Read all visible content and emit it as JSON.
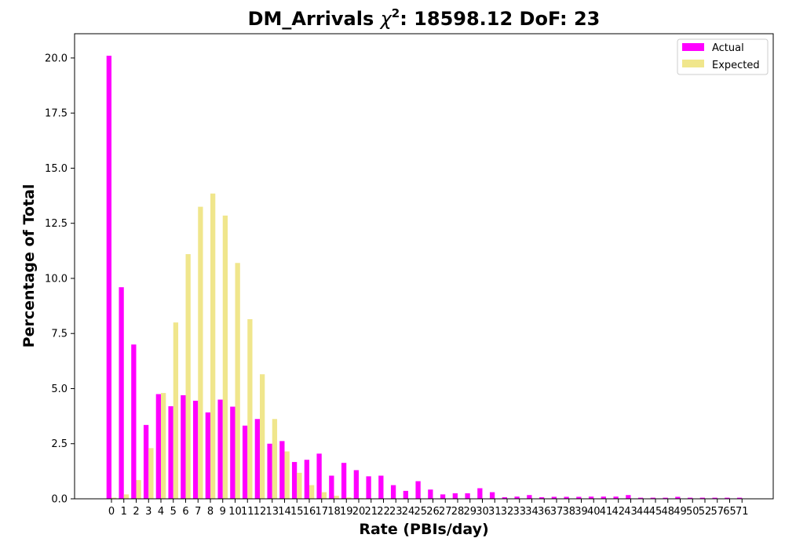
{
  "chart_data": {
    "type": "bar",
    "title": "DM_Arrivals χ²: 18598.12 DoF: 23",
    "title_parts": {
      "prefix": "DM_Arrivals ",
      "chi": "χ",
      "sup": "2",
      "suffix": ": 18598.12 DoF: 23"
    },
    "xlabel": "Rate (PBIs/day)",
    "ylabel": "Percentage of Total",
    "ylim": [
      0,
      21.1
    ],
    "yticks": [
      "0.0",
      "2.5",
      "5.0",
      "7.5",
      "10.0",
      "12.5",
      "15.0",
      "17.5",
      "20.0"
    ],
    "categories": [
      "0",
      "1",
      "2",
      "3",
      "4",
      "5",
      "6",
      "7",
      "8",
      "9",
      "10",
      "11",
      "12",
      "13",
      "14",
      "15",
      "16",
      "17",
      "18",
      "19",
      "20",
      "21",
      "22",
      "23",
      "24",
      "25",
      "26",
      "27",
      "28",
      "29",
      "30",
      "31",
      "32",
      "33",
      "34",
      "36",
      "37",
      "38",
      "39",
      "40",
      "41",
      "42",
      "43",
      "44",
      "45",
      "48",
      "49",
      "50",
      "52",
      "57",
      "65",
      "71"
    ],
    "series": [
      {
        "name": "Actual",
        "color": "#ff00ff",
        "values": [
          20.1,
          9.6,
          7.0,
          3.35,
          4.75,
          4.2,
          4.7,
          4.45,
          3.92,
          4.5,
          4.18,
          3.32,
          3.62,
          2.5,
          2.62,
          1.67,
          1.77,
          2.05,
          1.05,
          1.63,
          1.3,
          1.02,
          1.05,
          0.62,
          0.36,
          0.8,
          0.42,
          0.2,
          0.25,
          0.25,
          0.48,
          0.3,
          0.07,
          0.1,
          0.17,
          0.07,
          0.09,
          0.09,
          0.09,
          0.1,
          0.1,
          0.1,
          0.17,
          0.05,
          0.05,
          0.05,
          0.09,
          0.05,
          0.05,
          0.05,
          0.05,
          0.05
        ]
      },
      {
        "name": "Expected",
        "color": "#f0e68c",
        "values": [
          0.05,
          0.2,
          0.85,
          2.3,
          4.8,
          8.0,
          11.1,
          13.25,
          13.85,
          12.85,
          10.7,
          8.15,
          5.65,
          3.62,
          2.15,
          1.18,
          0.62,
          0.3,
          0.14,
          0.06,
          0.03,
          0.01,
          0,
          0,
          0,
          0,
          0,
          0,
          0,
          0,
          0,
          0,
          0,
          0,
          0,
          0,
          0,
          0,
          0,
          0,
          0,
          0,
          0,
          0,
          0,
          0,
          0,
          0,
          0,
          0,
          0,
          0
        ]
      }
    ],
    "legend_position": "top-right",
    "grid": false
  }
}
